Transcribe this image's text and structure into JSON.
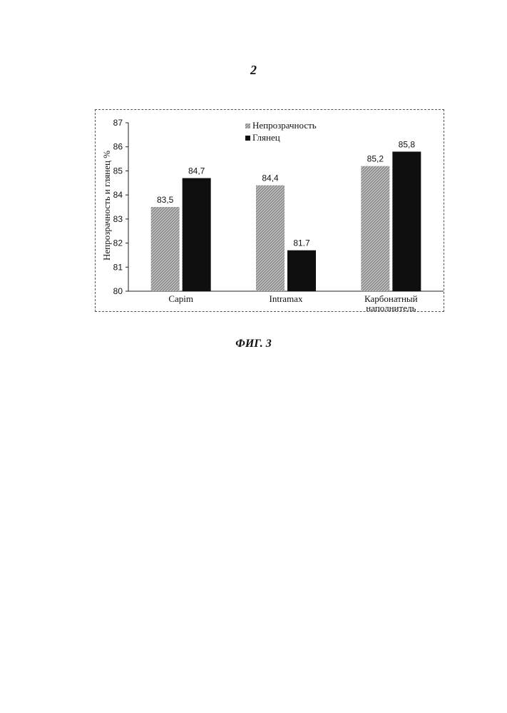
{
  "page": {
    "number": "2",
    "caption": "ФИГ. 3"
  },
  "chart_data": {
    "type": "bar",
    "title": "",
    "xlabel": "",
    "ylabel": "Непрозрачность и глянец %",
    "ylim": [
      80,
      87
    ],
    "yticks": [
      "80",
      "81",
      "82",
      "83",
      "84",
      "85",
      "86",
      "87"
    ],
    "categories": [
      [
        "Capim"
      ],
      [
        "Intramax"
      ],
      [
        "Карбонатный",
        "наполнитель"
      ]
    ],
    "series": [
      {
        "name": "Непрозрачность",
        "values": [
          83.5,
          84.4,
          85.2
        ],
        "labels": [
          "83,5",
          "84,4",
          "85,2"
        ],
        "color": "#a8a8a8"
      },
      {
        "name": "Глянец",
        "values": [
          84.7,
          81.7,
          85.8
        ],
        "labels": [
          "84,7",
          "81.7",
          "85,8"
        ],
        "color": "#0f0f0f"
      }
    ],
    "legend_position": "top-center",
    "grid": false
  }
}
